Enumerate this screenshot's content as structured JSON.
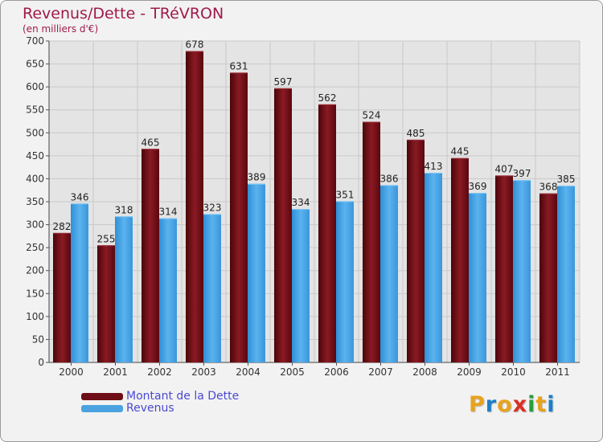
{
  "chart_data": {
    "type": "bar",
    "title": "Revenus/Dette - TRéVRON",
    "subtitle": "(en milliers d'€)",
    "categories": [
      "2000",
      "2001",
      "2002",
      "2003",
      "2004",
      "2005",
      "2006",
      "2007",
      "2008",
      "2009",
      "2010",
      "2011"
    ],
    "series": [
      {
        "name": "Montant de la Dette",
        "color": "#6e0d16",
        "values": [
          282,
          255,
          465,
          678,
          631,
          597,
          562,
          524,
          485,
          445,
          407,
          368
        ]
      },
      {
        "name": "Revenus",
        "color": "#4aa3e0",
        "values": [
          346,
          318,
          314,
          323,
          389,
          334,
          351,
          386,
          413,
          369,
          397,
          385
        ]
      }
    ],
    "ylim": [
      0,
      700
    ],
    "yticks": [
      0,
      50,
      100,
      150,
      200,
      250,
      300,
      350,
      400,
      450,
      500,
      550,
      600,
      650,
      700
    ],
    "grid": true,
    "legend": "bottom-left"
  },
  "logo": {
    "letters": [
      "P",
      "r",
      "o",
      "x",
      "i",
      "t",
      "i"
    ],
    "colors": [
      "#e8a21c",
      "#1a7fc9",
      "#e8a21c",
      "#d93025",
      "#2a9d3a",
      "#e8a21c",
      "#1a7fc9"
    ]
  }
}
